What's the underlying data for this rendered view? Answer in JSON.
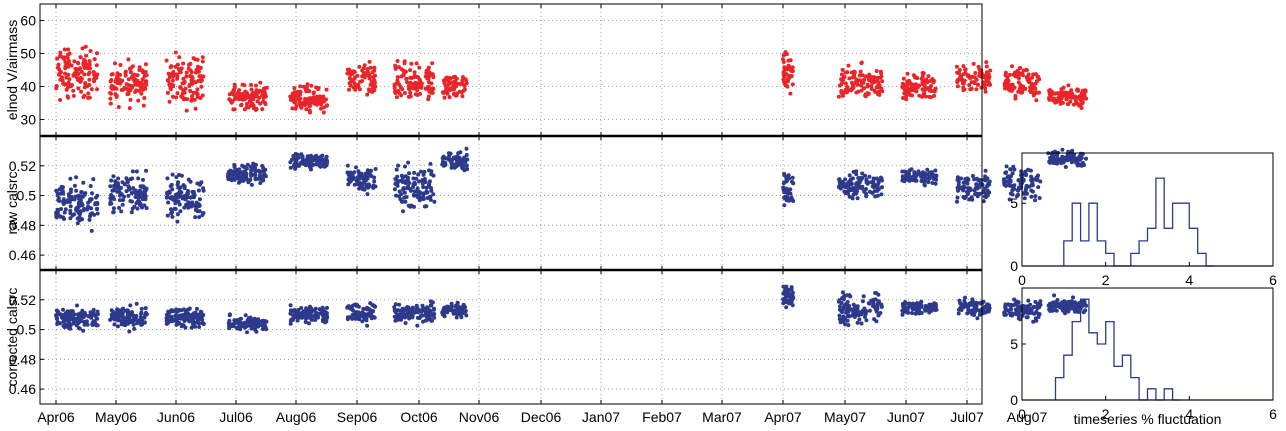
{
  "figure": {
    "colors": {
      "red_series": "#e8262a",
      "blue_series": "#2d3a8c",
      "axis": "#000000",
      "grid": "#888888"
    },
    "x_ticks": [
      "Apr06",
      "May06",
      "Jun06",
      "Jul06",
      "Aug06",
      "Sep06",
      "Oct06",
      "Nov06",
      "Dec06",
      "Jan07",
      "Feb07",
      "Mar07",
      "Apr07",
      "May07",
      "Jun07",
      "Jul07",
      "Aug07"
    ]
  },
  "chart_data": [
    {
      "type": "scatter",
      "ylabel": "elnod V/airmass",
      "y_ticks": [
        "30",
        "40",
        "50",
        "60"
      ],
      "ylim": [
        25,
        65
      ],
      "grid": "dotted",
      "color": "#e8262a",
      "clusters": [
        {
          "x": [
            "2006-04-01",
            "2006-04-22"
          ],
          "y_mean": 44,
          "y_spread": 6,
          "n": 130
        },
        {
          "x": [
            "2006-04-28",
            "2006-05-17"
          ],
          "y_mean": 41,
          "y_spread": 5,
          "n": 110
        },
        {
          "x": [
            "2006-05-27",
            "2006-06-15"
          ],
          "y_mean": 42,
          "y_spread": 6,
          "n": 110
        },
        {
          "x": [
            "2006-06-27",
            "2006-07-17"
          ],
          "y_mean": 37,
          "y_spread": 3,
          "n": 100
        },
        {
          "x": [
            "2006-07-29",
            "2006-08-17"
          ],
          "y_mean": 36,
          "y_spread": 3,
          "n": 100
        },
        {
          "x": [
            "2006-08-27",
            "2006-09-10"
          ],
          "y_mean": 42,
          "y_spread": 4,
          "n": 70
        },
        {
          "x": [
            "2006-09-19",
            "2006-10-09"
          ],
          "y_mean": 41,
          "y_spread": 5,
          "n": 110
        },
        {
          "x": [
            "2006-10-13",
            "2006-10-26"
          ],
          "y_mean": 40,
          "y_spread": 3,
          "n": 60
        },
        {
          "x": [
            "2007-04-01",
            "2007-04-06"
          ],
          "y_mean": 44,
          "y_spread": 5,
          "n": 40
        },
        {
          "x": [
            "2007-04-28",
            "2007-05-20"
          ],
          "y_mean": 41,
          "y_spread": 4,
          "n": 110
        },
        {
          "x": [
            "2007-05-30",
            "2007-06-16"
          ],
          "y_mean": 40,
          "y_spread": 3,
          "n": 90
        },
        {
          "x": [
            "2007-06-26",
            "2007-07-13"
          ],
          "y_mean": 43,
          "y_spread": 4,
          "n": 80
        },
        {
          "x": [
            "2007-07-20",
            "2007-08-08"
          ],
          "y_mean": 41,
          "y_spread": 4,
          "n": 90
        },
        {
          "x": [
            "2007-08-12",
            "2007-09-01"
          ],
          "y_mean": 37,
          "y_spread": 2.5,
          "n": 90
        }
      ]
    },
    {
      "type": "scatter",
      "ylabel": "raw calsrc",
      "y_ticks": [
        "0.46",
        "0.48",
        "0.5",
        "0.52"
      ],
      "ylim": [
        0.45,
        0.54
      ],
      "grid": "dotted",
      "color": "#2d3a8c",
      "clusters": [
        {
          "x": [
            "2006-04-01",
            "2006-04-22"
          ],
          "y_mean": 0.495,
          "y_spread": 0.012,
          "n": 120
        },
        {
          "x": [
            "2006-04-28",
            "2006-05-17"
          ],
          "y_mean": 0.502,
          "y_spread": 0.01,
          "n": 110
        },
        {
          "x": [
            "2006-05-27",
            "2006-06-15"
          ],
          "y_mean": 0.498,
          "y_spread": 0.012,
          "n": 110
        },
        {
          "x": [
            "2006-06-27",
            "2006-07-17"
          ],
          "y_mean": 0.515,
          "y_spread": 0.005,
          "n": 100
        },
        {
          "x": [
            "2006-07-29",
            "2006-08-17"
          ],
          "y_mean": 0.523,
          "y_spread": 0.004,
          "n": 100
        },
        {
          "x": [
            "2006-08-27",
            "2006-09-10"
          ],
          "y_mean": 0.51,
          "y_spread": 0.007,
          "n": 70
        },
        {
          "x": [
            "2006-09-19",
            "2006-10-09"
          ],
          "y_mean": 0.505,
          "y_spread": 0.011,
          "n": 110
        },
        {
          "x": [
            "2006-10-13",
            "2006-10-26"
          ],
          "y_mean": 0.523,
          "y_spread": 0.006,
          "n": 60
        },
        {
          "x": [
            "2007-04-01",
            "2007-04-06"
          ],
          "y_mean": 0.505,
          "y_spread": 0.008,
          "n": 40
        },
        {
          "x": [
            "2007-04-28",
            "2007-05-20"
          ],
          "y_mean": 0.507,
          "y_spread": 0.007,
          "n": 110
        },
        {
          "x": [
            "2007-05-30",
            "2007-06-16"
          ],
          "y_mean": 0.513,
          "y_spread": 0.004,
          "n": 90
        },
        {
          "x": [
            "2007-06-26",
            "2007-07-13"
          ],
          "y_mean": 0.505,
          "y_spread": 0.008,
          "n": 80
        },
        {
          "x": [
            "2007-07-20",
            "2007-08-08"
          ],
          "y_mean": 0.508,
          "y_spread": 0.01,
          "n": 90
        },
        {
          "x": [
            "2007-08-12",
            "2007-09-01"
          ],
          "y_mean": 0.525,
          "y_spread": 0.004,
          "n": 90
        }
      ]
    },
    {
      "type": "scatter",
      "ylabel": "corrected calsrc",
      "y_ticks": [
        "0.46",
        "0.48",
        "0.5",
        "0.52"
      ],
      "ylim": [
        0.45,
        0.54
      ],
      "grid": "dotted",
      "color": "#2d3a8c",
      "clusters": [
        {
          "x": [
            "2006-04-01",
            "2006-04-22"
          ],
          "y_mean": 0.507,
          "y_spread": 0.006,
          "n": 120
        },
        {
          "x": [
            "2006-04-28",
            "2006-05-17"
          ],
          "y_mean": 0.508,
          "y_spread": 0.006,
          "n": 110
        },
        {
          "x": [
            "2006-05-27",
            "2006-06-15"
          ],
          "y_mean": 0.508,
          "y_spread": 0.005,
          "n": 110
        },
        {
          "x": [
            "2006-06-27",
            "2006-07-17"
          ],
          "y_mean": 0.504,
          "y_spread": 0.004,
          "n": 100
        },
        {
          "x": [
            "2006-07-29",
            "2006-08-17"
          ],
          "y_mean": 0.51,
          "y_spread": 0.004,
          "n": 100
        },
        {
          "x": [
            "2006-08-27",
            "2006-09-10"
          ],
          "y_mean": 0.511,
          "y_spread": 0.005,
          "n": 70
        },
        {
          "x": [
            "2006-09-19",
            "2006-10-09"
          ],
          "y_mean": 0.511,
          "y_spread": 0.005,
          "n": 110
        },
        {
          "x": [
            "2006-10-13",
            "2006-10-26"
          ],
          "y_mean": 0.513,
          "y_spread": 0.004,
          "n": 60
        },
        {
          "x": [
            "2007-04-01",
            "2007-04-06"
          ],
          "y_mean": 0.522,
          "y_spread": 0.006,
          "n": 40
        },
        {
          "x": [
            "2007-04-28",
            "2007-05-20"
          ],
          "y_mean": 0.513,
          "y_spread": 0.008,
          "n": 110
        },
        {
          "x": [
            "2007-05-30",
            "2007-06-16"
          ],
          "y_mean": 0.515,
          "y_spread": 0.004,
          "n": 90
        },
        {
          "x": [
            "2007-06-26",
            "2007-07-13"
          ],
          "y_mean": 0.515,
          "y_spread": 0.005,
          "n": 80
        },
        {
          "x": [
            "2007-07-20",
            "2007-08-08"
          ],
          "y_mean": 0.513,
          "y_spread": 0.006,
          "n": 90
        },
        {
          "x": [
            "2007-08-12",
            "2007-09-01"
          ],
          "y_mean": 0.516,
          "y_spread": 0.004,
          "n": 90
        }
      ]
    },
    {
      "type": "histogram",
      "xlabel": "",
      "x_ticks": [
        "0",
        "2",
        "4",
        "6"
      ],
      "y_ticks": [
        "0",
        "5"
      ],
      "xlim": [
        0,
        6
      ],
      "ylim": [
        0,
        9
      ],
      "color": "#2d3a8c",
      "bin_edges": [
        1.0,
        1.2,
        1.4,
        1.6,
        1.8,
        2.0,
        2.2,
        2.4,
        2.6,
        2.8,
        3.0,
        3.2,
        3.4,
        3.6,
        3.8,
        4.0,
        4.2,
        4.4,
        4.6
      ],
      "counts": [
        2,
        5,
        2,
        5,
        2,
        1,
        0,
        0,
        1,
        2,
        3,
        7,
        3,
        5,
        5,
        3,
        1,
        0
      ]
    },
    {
      "type": "histogram",
      "xlabel": "timeseries % fluctuation",
      "x_ticks": [
        "0",
        "2",
        "4",
        "6"
      ],
      "y_ticks": [
        "0",
        "5"
      ],
      "xlim": [
        0,
        6
      ],
      "ylim": [
        0,
        10
      ],
      "color": "#2d3a8c",
      "bin_edges": [
        0.8,
        1.0,
        1.2,
        1.4,
        1.6,
        1.8,
        2.0,
        2.2,
        2.4,
        2.6,
        2.8,
        3.0,
        3.2,
        3.4,
        3.6,
        3.8
      ],
      "counts": [
        2,
        4,
        7,
        9,
        6,
        5,
        7,
        3,
        4,
        2,
        0,
        1,
        0,
        1,
        0
      ]
    }
  ]
}
